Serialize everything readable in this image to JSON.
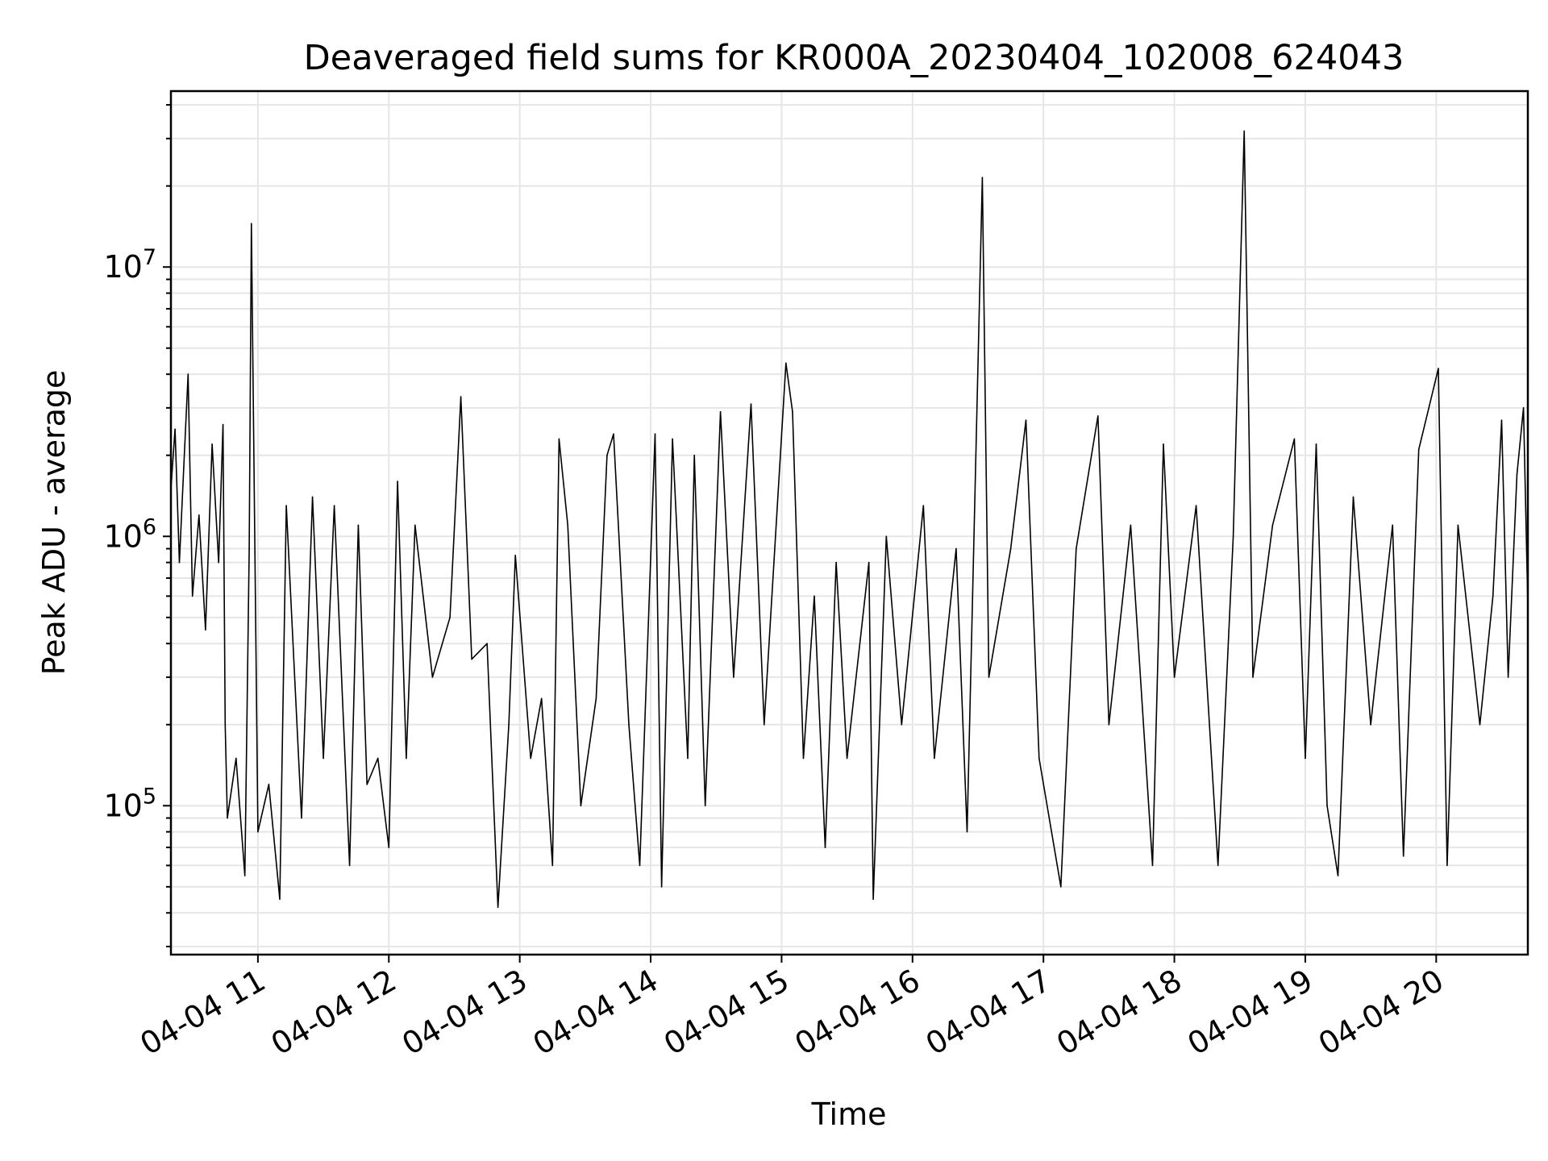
{
  "chart_data": {
    "type": "line",
    "title": "Deaveraged field sums for KR000A_20230404_102008_624043",
    "xlabel": "Time",
    "ylabel": "Peak ADU - average",
    "y_scale": "log",
    "ylim": [
      28000,
      45000000
    ],
    "xlim": [
      "2023-04-04 10:20:08",
      "2023-04-04 20:42:00"
    ],
    "grid": true,
    "line_color": "#000000",
    "x_tick_labels": [
      "04-04 11",
      "04-04 12",
      "04-04 13",
      "04-04 14",
      "04-04 15",
      "04-04 16",
      "04-04 17",
      "04-04 18",
      "04-04 19",
      "04-04 20"
    ],
    "x_tick_times": [
      "2023-04-04 11:00",
      "2023-04-04 12:00",
      "2023-04-04 13:00",
      "2023-04-04 14:00",
      "2023-04-04 15:00",
      "2023-04-04 16:00",
      "2023-04-04 17:00",
      "2023-04-04 18:00",
      "2023-04-04 19:00",
      "2023-04-04 20:00"
    ],
    "y_tick_labels": [
      {
        "value": 100000,
        "base": "10",
        "exp": "5"
      },
      {
        "value": 1000000,
        "base": "10",
        "exp": "6"
      },
      {
        "value": 10000000,
        "base": "10",
        "exp": "7"
      }
    ],
    "series": [
      {
        "points": [
          [
            "2023-04-04 10:20:08",
            1500000
          ],
          [
            "2023-04-04 10:22:00",
            2500000
          ],
          [
            "2023-04-04 10:24:00",
            800000
          ],
          [
            "2023-04-04 10:26:00",
            1800000
          ],
          [
            "2023-04-04 10:28:00",
            4000000
          ],
          [
            "2023-04-04 10:30:00",
            600000
          ],
          [
            "2023-04-04 10:33:00",
            1200000
          ],
          [
            "2023-04-04 10:36:00",
            450000
          ],
          [
            "2023-04-04 10:39:00",
            2200000
          ],
          [
            "2023-04-04 10:42:00",
            800000
          ],
          [
            "2023-04-04 10:44:00",
            2600000
          ],
          [
            "2023-04-04 10:45:00",
            200000
          ],
          [
            "2023-04-04 10:46:00",
            90000
          ],
          [
            "2023-04-04 10:50:00",
            150000
          ],
          [
            "2023-04-04 10:54:00",
            55000
          ],
          [
            "2023-04-04 10:56:00",
            900000
          ],
          [
            "2023-04-04 11:00:00",
            80000
          ],
          [
            "2023-04-04 10:57:00",
            14500000
          ],
          [
            "2023-04-04 11:05:00",
            120000
          ],
          [
            "2023-04-04 11:10:00",
            45000
          ],
          [
            "2023-04-04 11:13:00",
            1300000
          ],
          [
            "2023-04-04 11:20:00",
            90000
          ],
          [
            "2023-04-04 11:25:00",
            1400000
          ],
          [
            "2023-04-04 11:30:00",
            150000
          ],
          [
            "2023-04-04 11:35:00",
            1300000
          ],
          [
            "2023-04-04 11:42:00",
            60000
          ],
          [
            "2023-04-04 11:46:00",
            1100000
          ],
          [
            "2023-04-04 11:50:00",
            120000
          ],
          [
            "2023-04-04 11:55:00",
            150000
          ],
          [
            "2023-04-04 12:00:00",
            70000
          ],
          [
            "2023-04-04 12:04:00",
            1600000
          ],
          [
            "2023-04-04 12:08:00",
            150000
          ],
          [
            "2023-04-04 12:12:00",
            1100000
          ],
          [
            "2023-04-04 12:20:00",
            300000
          ],
          [
            "2023-04-04 12:28:00",
            500000
          ],
          [
            "2023-04-04 12:33:00",
            3300000
          ],
          [
            "2023-04-04 12:38:00",
            350000
          ],
          [
            "2023-04-04 12:45:00",
            400000
          ],
          [
            "2023-04-04 12:50:00",
            42000
          ],
          [
            "2023-04-04 12:55:00",
            200000
          ],
          [
            "2023-04-04 12:58:00",
            850000
          ],
          [
            "2023-04-04 13:05:00",
            150000
          ],
          [
            "2023-04-04 13:10:00",
            250000
          ],
          [
            "2023-04-04 13:15:00",
            60000
          ],
          [
            "2023-04-04 13:18:00",
            2300000
          ],
          [
            "2023-04-04 13:22:00",
            1100000
          ],
          [
            "2023-04-04 13:28:00",
            100000
          ],
          [
            "2023-04-04 13:35:00",
            250000
          ],
          [
            "2023-04-04 13:40:00",
            2000000
          ],
          [
            "2023-04-04 13:43:00",
            2400000
          ],
          [
            "2023-04-04 13:50:00",
            200000
          ],
          [
            "2023-04-04 13:55:00",
            60000
          ],
          [
            "2023-04-04 14:02:00",
            2400000
          ],
          [
            "2023-04-04 14:05:00",
            50000
          ],
          [
            "2023-04-04 14:10:00",
            2300000
          ],
          [
            "2023-04-04 14:17:00",
            150000
          ],
          [
            "2023-04-04 14:20:00",
            2000000
          ],
          [
            "2023-04-04 14:25:00",
            100000
          ],
          [
            "2023-04-04 14:32:00",
            2900000
          ],
          [
            "2023-04-04 14:38:00",
            300000
          ],
          [
            "2023-04-04 14:46:00",
            3100000
          ],
          [
            "2023-04-04 14:52:00",
            200000
          ],
          [
            "2023-04-04 15:02:00",
            4400000
          ],
          [
            "2023-04-04 15:05:00",
            2900000
          ],
          [
            "2023-04-04 15:10:00",
            150000
          ],
          [
            "2023-04-04 15:15:00",
            600000
          ],
          [
            "2023-04-04 15:20:00",
            70000
          ],
          [
            "2023-04-04 15:25:00",
            800000
          ],
          [
            "2023-04-04 15:30:00",
            150000
          ],
          [
            "2023-04-04 15:40:00",
            800000
          ],
          [
            "2023-04-04 15:42:00",
            45000
          ],
          [
            "2023-04-04 15:48:00",
            1000000
          ],
          [
            "2023-04-04 15:55:00",
            200000
          ],
          [
            "2023-04-04 16:05:00",
            1300000
          ],
          [
            "2023-04-04 16:10:00",
            150000
          ],
          [
            "2023-04-04 16:20:00",
            900000
          ],
          [
            "2023-04-04 16:25:00",
            80000
          ],
          [
            "2023-04-04 16:32:00",
            21500000
          ],
          [
            "2023-04-04 16:35:00",
            300000
          ],
          [
            "2023-04-04 16:45:00",
            900000
          ],
          [
            "2023-04-04 16:52:00",
            2700000
          ],
          [
            "2023-04-04 16:58:00",
            150000
          ],
          [
            "2023-04-04 17:08:00",
            50000
          ],
          [
            "2023-04-04 17:15:00",
            900000
          ],
          [
            "2023-04-04 17:25:00",
            2800000
          ],
          [
            "2023-04-04 17:30:00",
            200000
          ],
          [
            "2023-04-04 17:40:00",
            1100000
          ],
          [
            "2023-04-04 17:50:00",
            60000
          ],
          [
            "2023-04-04 17:55:00",
            2200000
          ],
          [
            "2023-04-04 18:00:00",
            300000
          ],
          [
            "2023-04-04 18:10:00",
            1300000
          ],
          [
            "2023-04-04 18:20:00",
            60000
          ],
          [
            "2023-04-04 18:27:00",
            1000000
          ],
          [
            "2023-04-04 18:32:00",
            32000000
          ],
          [
            "2023-04-04 18:36:00",
            300000
          ],
          [
            "2023-04-04 18:45:00",
            1100000
          ],
          [
            "2023-04-04 18:55:00",
            2300000
          ],
          [
            "2023-04-04 19:00:00",
            150000
          ],
          [
            "2023-04-04 19:05:00",
            2200000
          ],
          [
            "2023-04-04 19:10:00",
            100000
          ],
          [
            "2023-04-04 19:15:00",
            55000
          ],
          [
            "2023-04-04 19:22:00",
            1400000
          ],
          [
            "2023-04-04 19:30:00",
            200000
          ],
          [
            "2023-04-04 19:40:00",
            1100000
          ],
          [
            "2023-04-04 19:45:00",
            65000
          ],
          [
            "2023-04-04 19:52:00",
            2100000
          ],
          [
            "2023-04-04 20:01:00",
            4200000
          ],
          [
            "2023-04-04 20:05:00",
            60000
          ],
          [
            "2023-04-04 20:10:00",
            1100000
          ],
          [
            "2023-04-04 20:20:00",
            200000
          ],
          [
            "2023-04-04 20:26:00",
            600000
          ],
          [
            "2023-04-04 20:30:00",
            2700000
          ],
          [
            "2023-04-04 20:33:00",
            300000
          ],
          [
            "2023-04-04 20:37:00",
            1700000
          ],
          [
            "2023-04-04 20:40:00",
            3000000
          ],
          [
            "2023-04-04 20:42:00",
            550000
          ]
        ]
      }
    ]
  }
}
